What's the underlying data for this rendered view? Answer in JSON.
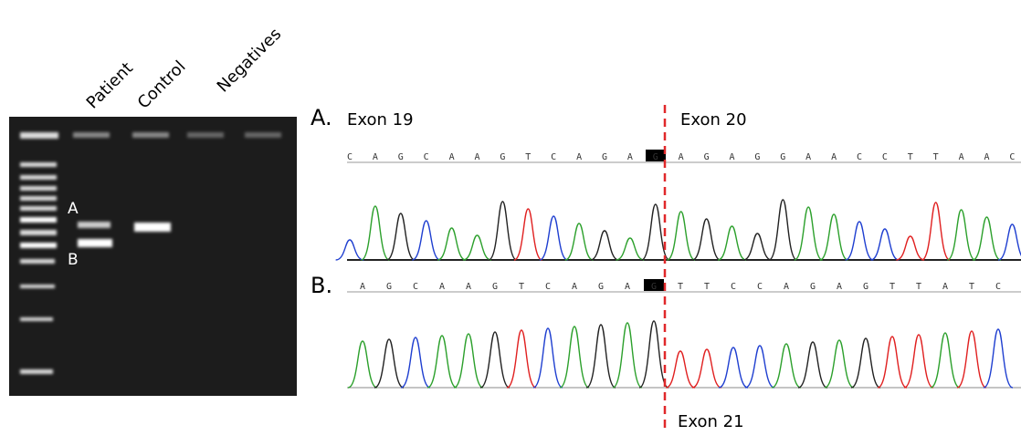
{
  "gel": {
    "lanes": [
      "Patient",
      "Control",
      "Negatives"
    ],
    "bands": [
      "A",
      "B"
    ]
  },
  "panels": [
    {
      "label": "A.",
      "exon_left": "Exon 19",
      "exon_right": "Exon 20",
      "sequence": [
        "C",
        "A",
        "G",
        "C",
        "A",
        "A",
        "G",
        "T",
        "C",
        "A",
        "G",
        "A",
        "G",
        "A",
        "G",
        "A",
        "G",
        "G",
        "A",
        "A",
        "C",
        "C",
        "T",
        "T",
        "A",
        "A",
        "C"
      ]
    },
    {
      "label": "B.",
      "exon_right": "Exon 21",
      "sequence": [
        "A",
        "G",
        "C",
        "A",
        "A",
        "G",
        "T",
        "C",
        "A",
        "G",
        "A",
        "G",
        "T",
        "T",
        "C",
        "C",
        "A",
        "G",
        "A",
        "G",
        "T",
        "T",
        "A",
        "T",
        "C"
      ]
    }
  ]
}
